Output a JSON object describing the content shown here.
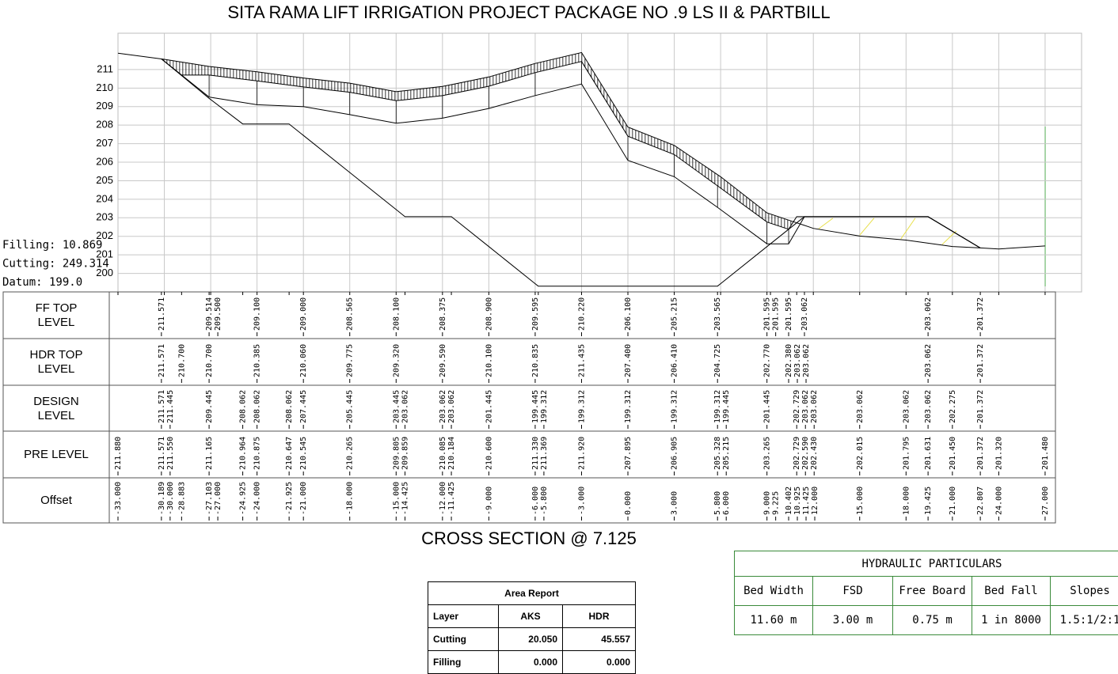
{
  "chart_data": {
    "type": "line",
    "title": "SITA RAMA LIFT IRRIGATION PROJECT PACKAGE NO .9 LS II & PARTBILL",
    "subtitle": "CROSS SECTION @ 7.125",
    "annotations": [
      "Filling: 10.869",
      "Cutting: 249.314",
      "Datum: 199.0"
    ],
    "xlabel": "Offset",
    "xlim": [
      -33,
      29.36
    ],
    "ylim": [
      199,
      212.96
    ],
    "yticks": [
      200,
      201,
      202,
      203,
      204,
      205,
      206,
      207,
      208,
      209,
      210,
      211
    ],
    "grid": true,
    "xticks": [
      {
        "value": -33,
        "label": "-33.000"
      },
      {
        "value": -30.189,
        "label": "-30.189"
      },
      {
        "value": -30,
        "label": "-30.000"
      },
      {
        "value": -28.883,
        "label": "-28.883"
      },
      {
        "value": -27.103,
        "label": "-27.103"
      },
      {
        "value": -27,
        "label": "-27.000"
      },
      {
        "value": -24.925,
        "label": "-24.925"
      },
      {
        "value": -24,
        "label": "-24.000"
      },
      {
        "value": -21.925,
        "label": "-21.925"
      },
      {
        "value": -21,
        "label": "-21.000"
      },
      {
        "value": -18,
        "label": "-18.000"
      },
      {
        "value": -15,
        "label": "-15.000"
      },
      {
        "value": -14.425,
        "label": "-14.425"
      },
      {
        "value": -12,
        "label": "-12.000"
      },
      {
        "value": -11.425,
        "label": "-11.425"
      },
      {
        "value": -9,
        "label": "-9.000"
      },
      {
        "value": -6,
        "label": "-6.000"
      },
      {
        "value": -5.8,
        "label": "-5.800"
      },
      {
        "value": -3,
        "label": "-3.000"
      },
      {
        "value": 0,
        "label": "0.000"
      },
      {
        "value": 3,
        "label": "3.000"
      },
      {
        "value": 5.8,
        "label": "5.800"
      },
      {
        "value": 6,
        "label": "6.000"
      },
      {
        "value": 9,
        "label": "9.000"
      },
      {
        "value": 9.225,
        "label": "9.225"
      },
      {
        "value": 10.402,
        "label": "10.402"
      },
      {
        "value": 10.925,
        "label": "10.925"
      },
      {
        "value": 11.425,
        "label": "11.425"
      },
      {
        "value": 12,
        "label": "12.000"
      },
      {
        "value": 15,
        "label": "15.000"
      },
      {
        "value": 18,
        "label": "18.000"
      },
      {
        "value": 19.425,
        "label": "19.425"
      },
      {
        "value": 21,
        "label": "21.000"
      },
      {
        "value": 22.807,
        "label": "22.807"
      },
      {
        "value": 24,
        "label": "24.000"
      },
      {
        "value": 27,
        "label": "27.000"
      }
    ],
    "series": [
      {
        "name": "FF TOP LEVEL",
        "color": "#000000",
        "values": [
          null,
          211.571,
          null,
          null,
          209.514,
          209.5,
          null,
          209.1,
          null,
          209,
          208.565,
          208.1,
          null,
          208.375,
          null,
          208.9,
          209.595,
          null,
          210.22,
          206.1,
          205.215,
          203.565,
          null,
          201.595,
          201.595,
          201.595,
          null,
          203.062,
          null,
          null,
          null,
          203.062,
          null,
          201.372,
          null,
          null
        ],
        "value_labels": [
          null,
          "211.571",
          null,
          null,
          "209.514",
          "209.500",
          null,
          "209.100",
          null,
          "209.000",
          "208.565",
          "208.100",
          null,
          "208.375",
          null,
          "208.900",
          "209.595",
          null,
          "210.220",
          "206.100",
          "205.215",
          "203.565",
          null,
          "201.595",
          "201.595",
          "201.595",
          null,
          "203.062",
          null,
          null,
          null,
          "203.062",
          null,
          "201.372",
          null,
          null
        ]
      },
      {
        "name": "HDR TOP LEVEL",
        "color": "#000000",
        "values": [
          null,
          211.571,
          null,
          210.7,
          210.7,
          null,
          null,
          210.385,
          null,
          210.06,
          209.775,
          209.32,
          null,
          209.59,
          null,
          210.1,
          210.835,
          null,
          211.435,
          207.4,
          206.41,
          204.725,
          null,
          202.77,
          null,
          202.38,
          203.062,
          203.062,
          null,
          null,
          null,
          203.062,
          null,
          201.372,
          null,
          null
        ],
        "value_labels": [
          null,
          "211.571",
          null,
          "210.700",
          "210.700",
          null,
          null,
          "210.385",
          null,
          "210.060",
          "209.775",
          "209.320",
          null,
          "209.590",
          null,
          "210.100",
          "210.835",
          null,
          "211.435",
          "207.400",
          "206.410",
          "204.725",
          null,
          "202.770",
          null,
          "202.380",
          "203.062",
          "203.062",
          null,
          null,
          null,
          "203.062",
          null,
          "201.372",
          null,
          null
        ]
      },
      {
        "name": "DESIGN LEVEL",
        "color": "#000000",
        "values": [
          null,
          211.571,
          211.445,
          null,
          209.445,
          null,
          208.062,
          208.062,
          208.062,
          207.445,
          205.445,
          203.445,
          203.062,
          203.062,
          203.062,
          201.445,
          199.445,
          199.312,
          199.312,
          199.312,
          199.312,
          199.312,
          199.445,
          201.445,
          null,
          null,
          202.729,
          203.062,
          203.062,
          203.062,
          203.062,
          203.062,
          202.275,
          201.372,
          null,
          null
        ],
        "value_labels": [
          null,
          "211.571",
          "211.445",
          null,
          "209.445",
          null,
          "208.062",
          "208.062",
          "208.062",
          "207.445",
          "205.445",
          "203.445",
          "203.062",
          "203.062",
          "203.062",
          "201.445",
          "199.445",
          "199.312",
          "199.312",
          "199.312",
          "199.312",
          "199.312",
          "199.445",
          "201.445",
          null,
          null,
          "202.729",
          "203.062",
          "203.062",
          "203.062",
          "203.062",
          "203.062",
          "202.275",
          "201.372",
          null,
          null
        ]
      },
      {
        "name": "PRE LEVEL",
        "color": "#000000",
        "values": [
          211.88,
          211.571,
          211.55,
          null,
          211.165,
          null,
          210.964,
          210.875,
          210.647,
          210.545,
          210.265,
          209.805,
          209.859,
          210.085,
          210.184,
          210.6,
          211.33,
          211.369,
          211.92,
          207.895,
          206.905,
          205.328,
          205.215,
          203.265,
          null,
          null,
          202.729,
          202.59,
          202.43,
          202.015,
          201.795,
          201.631,
          201.45,
          201.372,
          201.32,
          201.48
        ],
        "value_labels": [
          "211.880",
          "211.571",
          "211.550",
          null,
          "211.165",
          null,
          "210.964",
          "210.875",
          "210.647",
          "210.545",
          "210.265",
          "209.805",
          "209.859",
          "210.085",
          "210.184",
          "210.600",
          "211.330",
          "211.369",
          "211.920",
          "207.895",
          "206.905",
          "205.328",
          "205.215",
          "203.265",
          null,
          null,
          "202.729",
          "202.590",
          "202.430",
          "202.015",
          "201.795",
          "201.631",
          "201.450",
          "201.372",
          "201.320",
          "201.480"
        ]
      }
    ]
  },
  "area_report": {
    "title": "Area Report",
    "columns": [
      "Layer",
      "AKS",
      "HDR"
    ],
    "rows": [
      [
        "Cutting",
        "20.050",
        "45.557"
      ],
      [
        "Filling",
        "0.000",
        "0.000"
      ]
    ]
  },
  "hydraulic_particulars": {
    "title": "HYDRAULIC PARTICULARS",
    "columns": [
      "Bed Width",
      "FSD",
      "Free Board",
      "Bed Fall",
      "Slopes"
    ],
    "values": [
      "11.60 m",
      "3.00 m",
      "0.75 m",
      "1 in 8000",
      "1.5:1/2:1"
    ]
  }
}
